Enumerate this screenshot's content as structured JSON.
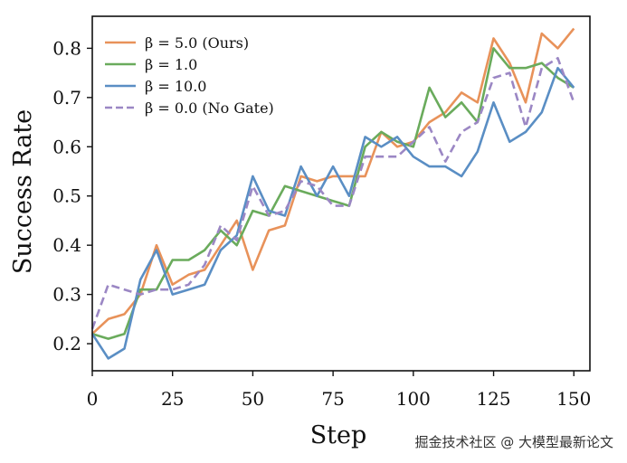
{
  "chart_data": {
    "type": "line",
    "title": "",
    "xlabel": "Step",
    "ylabel": "Success Rate",
    "xlim": [
      0,
      155
    ],
    "ylim": [
      0.145,
      0.865
    ],
    "xticks": [
      0,
      25,
      50,
      75,
      100,
      125,
      150
    ],
    "yticks": [
      0.2,
      0.3,
      0.4,
      0.5,
      0.6,
      0.7,
      0.8
    ],
    "xtick_labels": [
      "0",
      "25",
      "50",
      "75",
      "100",
      "125",
      "150"
    ],
    "ytick_labels": [
      "0.2",
      "0.3",
      "0.4",
      "0.5",
      "0.6",
      "0.7",
      "0.8"
    ],
    "grid": false,
    "legend_position": "top-left",
    "x": [
      0,
      5,
      10,
      15,
      20,
      25,
      30,
      35,
      40,
      45,
      50,
      55,
      60,
      65,
      70,
      75,
      80,
      85,
      90,
      95,
      100,
      105,
      110,
      115,
      120,
      125,
      130,
      135,
      140,
      145,
      150
    ],
    "series": [
      {
        "name": "β = 5.0 (Ours)",
        "color": "#e8925a",
        "dash": "solid",
        "values": [
          0.22,
          0.25,
          0.26,
          0.3,
          0.4,
          0.32,
          0.34,
          0.35,
          0.4,
          0.45,
          0.35,
          0.43,
          0.44,
          0.54,
          0.53,
          0.54,
          0.54,
          0.54,
          0.63,
          0.6,
          0.61,
          0.65,
          0.67,
          0.71,
          0.69,
          0.82,
          0.77,
          0.69,
          0.83,
          0.8,
          0.84
        ]
      },
      {
        "name": "β = 1.0",
        "color": "#6aab5c",
        "dash": "solid",
        "values": [
          0.22,
          0.21,
          0.22,
          0.31,
          0.31,
          0.37,
          0.37,
          0.39,
          0.43,
          0.4,
          0.47,
          0.46,
          0.52,
          0.51,
          0.5,
          0.49,
          0.48,
          0.6,
          0.63,
          0.61,
          0.6,
          0.72,
          0.66,
          0.69,
          0.65,
          0.8,
          0.76,
          0.76,
          0.77,
          0.74,
          0.72
        ]
      },
      {
        "name": "β = 10.0",
        "color": "#5a8ec4",
        "dash": "solid",
        "values": [
          0.22,
          0.17,
          0.19,
          0.33,
          0.39,
          0.3,
          0.31,
          0.32,
          0.39,
          0.42,
          0.54,
          0.47,
          0.46,
          0.56,
          0.5,
          0.56,
          0.5,
          0.62,
          0.6,
          0.62,
          0.58,
          0.56,
          0.56,
          0.54,
          0.59,
          0.69,
          0.61,
          0.63,
          0.67,
          0.76,
          0.72
        ]
      },
      {
        "name": "β = 0.0 (No Gate)",
        "color": "#9b87c4",
        "dash": "dashed",
        "values": [
          0.23,
          0.32,
          0.31,
          0.3,
          0.31,
          0.31,
          0.32,
          0.36,
          0.44,
          0.41,
          0.52,
          0.46,
          0.47,
          0.53,
          0.52,
          0.48,
          0.48,
          0.58,
          0.58,
          0.58,
          0.61,
          0.64,
          0.57,
          0.63,
          0.65,
          0.74,
          0.75,
          0.64,
          0.76,
          0.78,
          0.69
        ]
      }
    ]
  },
  "watermark": "掘金技术社区 @ 大模型最新论文"
}
